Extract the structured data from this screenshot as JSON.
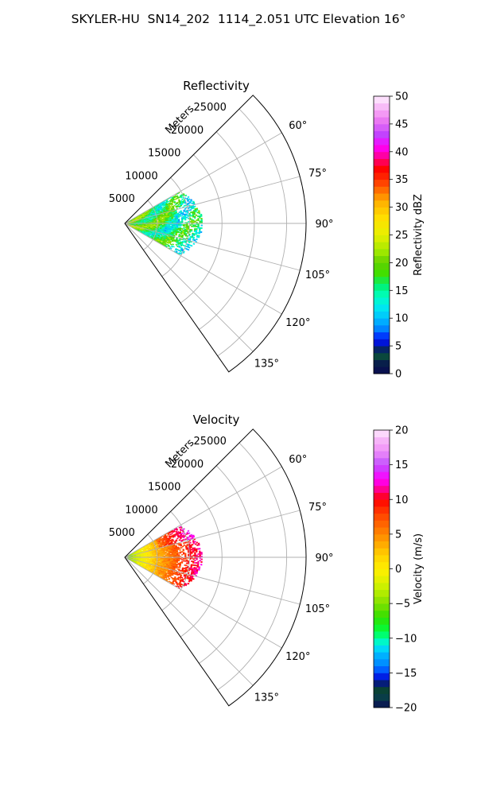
{
  "figure": {
    "title": "SKYLER-HU  SN14_202  1114_2.051 UTC Elevation 16°"
  },
  "chart_data": [
    {
      "type": "heatmap",
      "subtype": "polar-sector (radar PPI)",
      "title": "Reflectivity",
      "radial_label": "Meters",
      "radial_range": [
        0,
        28000
      ],
      "radial_ticks": [
        "5000",
        "10000",
        "15000",
        "20000",
        "25000"
      ],
      "angle_range_deg": [
        45,
        145
      ],
      "angle_ticks": [
        "60°",
        "75°",
        "90°",
        "105°",
        "120°",
        "135°"
      ],
      "grid": true,
      "colorbar": {
        "label": "Reflectivity dBZ",
        "min": 0,
        "max": 50,
        "ticks": [
          "0",
          "5",
          "10",
          "15",
          "20",
          "25",
          "30",
          "35",
          "40",
          "45",
          "50"
        ]
      },
      "data_summary": {
        "max_range_m": 12000,
        "angle_span_deg": [
          60,
          120
        ],
        "typical_dbz": [
          10,
          25
        ]
      }
    },
    {
      "type": "heatmap",
      "subtype": "polar-sector (radar PPI)",
      "title": "Velocity",
      "radial_label": "Meters",
      "radial_range": [
        0,
        28000
      ],
      "radial_ticks": [
        "5000",
        "10000",
        "15000",
        "20000",
        "25000"
      ],
      "angle_range_deg": [
        45,
        145
      ],
      "angle_ticks": [
        "60°",
        "75°",
        "90°",
        "105°",
        "120°",
        "135°"
      ],
      "grid": true,
      "colorbar": {
        "label": "Velocity (m/s)",
        "min": -20,
        "max": 20,
        "ticks": [
          "−20",
          "−15",
          "−10",
          "−5",
          "0",
          "5",
          "10",
          "15",
          "20"
        ]
      },
      "data_summary": {
        "max_range_m": 12000,
        "angle_span_deg": [
          60,
          120
        ],
        "near_range_velocity_ms": -7,
        "far_range_velocity_ms": 12
      }
    }
  ],
  "colors": {
    "grid": "#b0b0b0",
    "axis": "#000000"
  }
}
